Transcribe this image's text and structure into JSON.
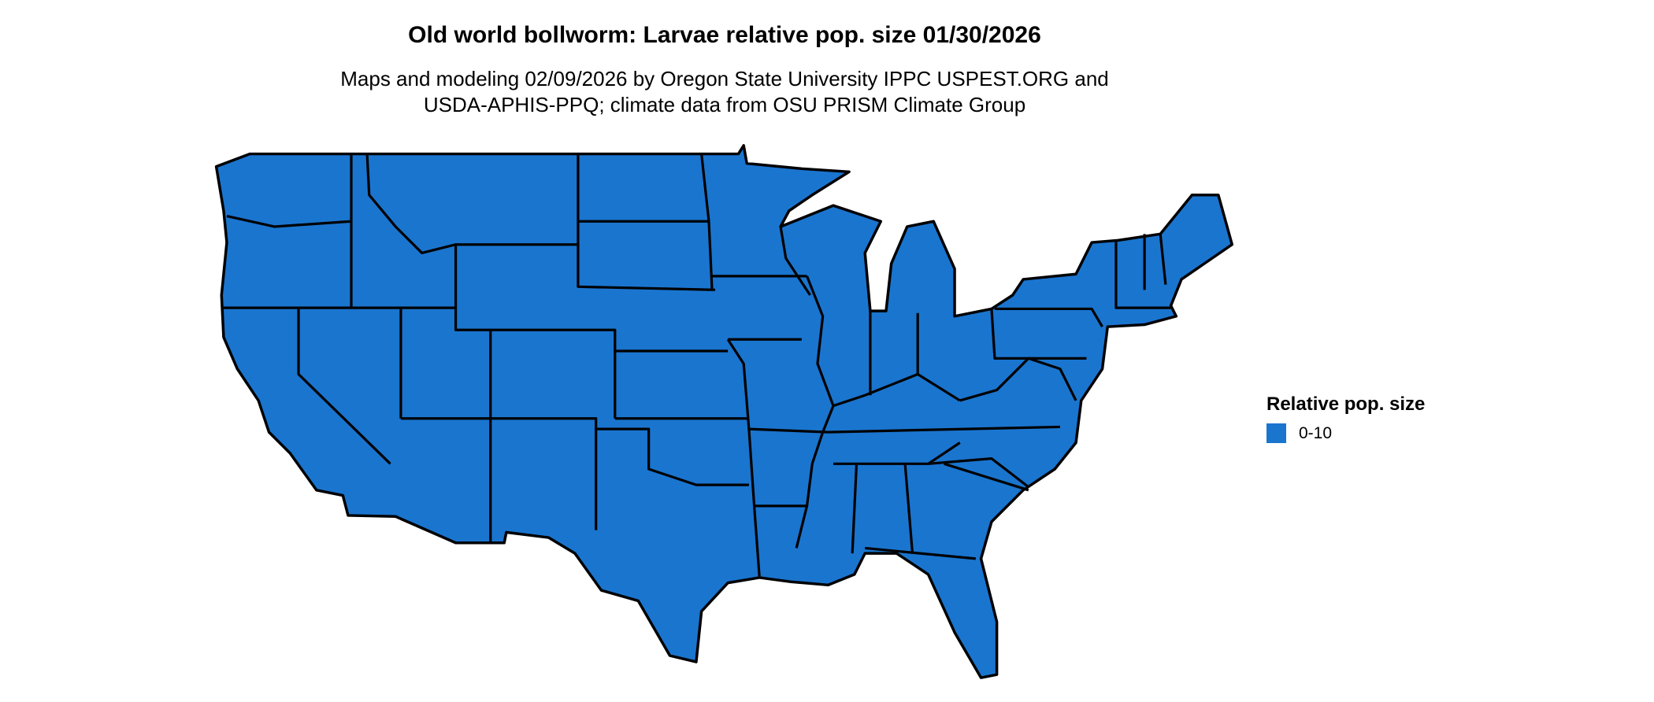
{
  "title": "Old world bollworm: Larvae relative pop. size 01/30/2026",
  "subtitle_lines": [
    "Maps and modeling 02/09/2026 by Oregon State University IPPC USPEST.ORG and",
    "USDA-APHIS-PPQ; climate data from OSU PRISM Climate Group"
  ],
  "map": {
    "region": "contiguous United States, state boundaries",
    "fill_color": "#1a75cf",
    "border_color": "#000000"
  },
  "legend": {
    "title": "Relative pop. size",
    "items": [
      {
        "label": "0-10",
        "color": "#1a75cf"
      }
    ]
  }
}
